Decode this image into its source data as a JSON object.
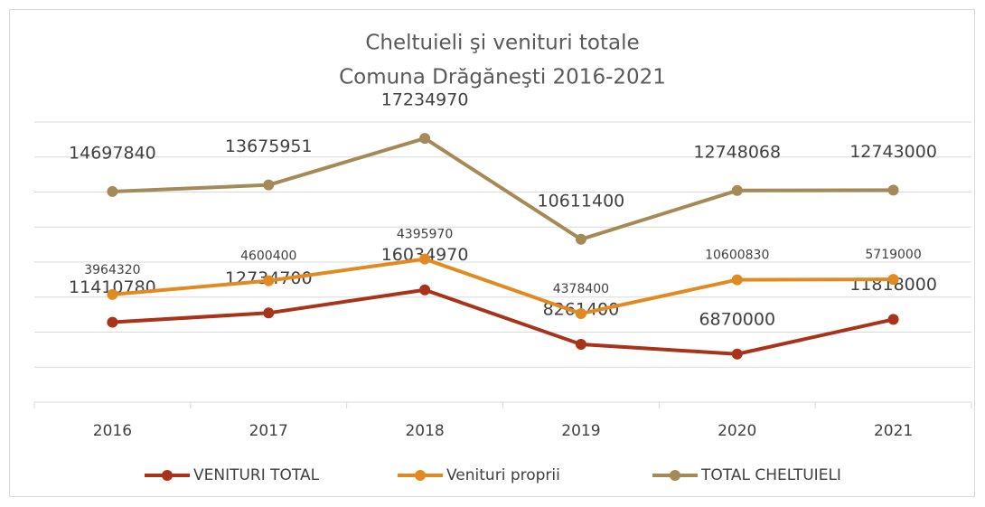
{
  "chart_data": {
    "type": "line",
    "stacked": true,
    "title": "Cheltuieli şi venituri totale",
    "subtitle": "Comuna Drăgăneşti 2016-2021",
    "categories": [
      "2016",
      "2017",
      "2018",
      "2019",
      "2020",
      "2021"
    ],
    "series": [
      {
        "name": "VENITURI TOTAL",
        "color": "#a8331a",
        "values": [
          11410780,
          12734700,
          16034970,
          8261400,
          6870000,
          11818000
        ]
      },
      {
        "name": "Venituri proprii",
        "color": "#e28a22",
        "values": [
          3964320,
          4600400,
          4395970,
          4378400,
          10600830,
          5719000
        ]
      },
      {
        "name": "TOTAL CHELTUIELI",
        "color": "#a58a58",
        "values": [
          14697840,
          13675951,
          17234970,
          10611400,
          12748068,
          12743000
        ]
      }
    ],
    "ylim": [
      0,
      40000000
    ],
    "yticks": [
      0,
      5000000,
      10000000,
      15000000,
      20000000,
      25000000,
      30000000,
      35000000,
      40000000
    ],
    "grid": true,
    "legend": "bottom"
  }
}
